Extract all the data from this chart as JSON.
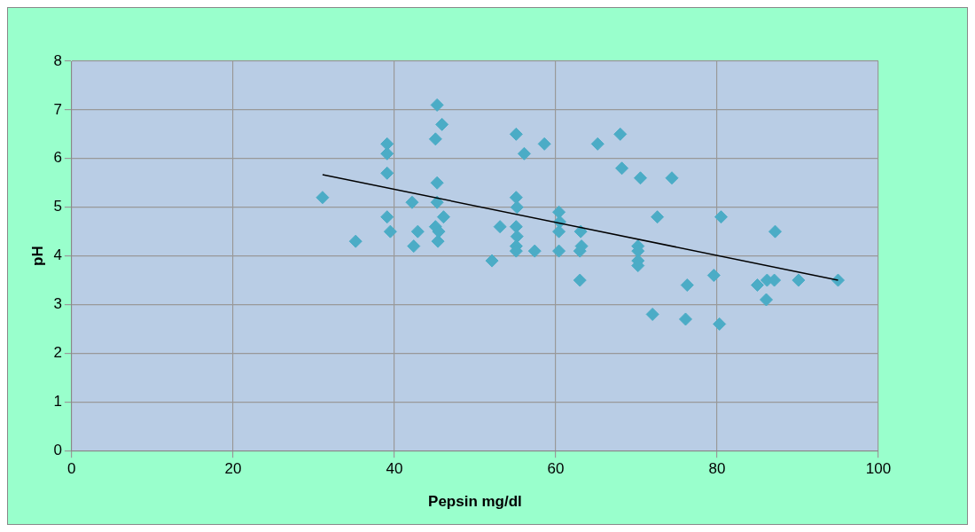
{
  "chart_data": {
    "type": "scatter",
    "xlabel": "Pepsin mg/dl",
    "ylabel": "pH",
    "xlim": [
      0,
      100
    ],
    "ylim": [
      0,
      8
    ],
    "xticks": [
      0,
      20,
      40,
      60,
      80,
      100
    ],
    "yticks": [
      0,
      1,
      2,
      3,
      4,
      5,
      6,
      7,
      8
    ],
    "grid": true,
    "legend": false,
    "marker": "diamond",
    "series": [
      {
        "color": "#4bacc6",
        "x": [
          31.1,
          35.2,
          39.1,
          39.1,
          39.1,
          39.1,
          39.5,
          42.2,
          42.4,
          42.9,
          45.3,
          45.9,
          45.1,
          45.3,
          45.3,
          45.1,
          45.4,
          46.1,
          45.5,
          52.1,
          53.1,
          55.1,
          56.1,
          55.1,
          55.2,
          55.1,
          55.2,
          55.1,
          55.1,
          57.4,
          58.6,
          60.4,
          60.4,
          60.4,
          60.5,
          63.1,
          63.2,
          63.0,
          63.0,
          65.2,
          68.0,
          68.2,
          70.5,
          72.6,
          70.2,
          70.2,
          70.2,
          70.2,
          72.0,
          74.4,
          76.3,
          76.1,
          79.6,
          80.5,
          80.3,
          85.0,
          86.2,
          86.1,
          87.1,
          87.2,
          90.1,
          95.0
        ],
        "values": [
          5.2,
          4.3,
          6.3,
          6.1,
          5.7,
          4.8,
          4.5,
          5.1,
          4.2,
          4.5,
          7.1,
          6.7,
          6.4,
          5.5,
          5.1,
          4.6,
          4.3,
          4.8,
          4.5,
          3.9,
          4.6,
          6.5,
          6.1,
          5.2,
          5.0,
          4.6,
          4.4,
          4.2,
          4.1,
          4.1,
          6.3,
          4.9,
          4.5,
          4.1,
          4.7,
          4.5,
          4.2,
          4.1,
          3.5,
          6.3,
          6.5,
          5.8,
          5.6,
          4.8,
          4.2,
          4.1,
          3.9,
          3.8,
          2.8,
          5.6,
          3.4,
          2.7,
          3.6,
          4.8,
          2.6,
          3.4,
          3.5,
          3.1,
          3.5,
          4.5,
          3.5,
          3.5
        ]
      },
      {
        "type": "line",
        "color": "#000000",
        "marker": "none",
        "x": [
          31.1,
          95.0
        ],
        "values": [
          5.67,
          3.5
        ]
      }
    ]
  }
}
